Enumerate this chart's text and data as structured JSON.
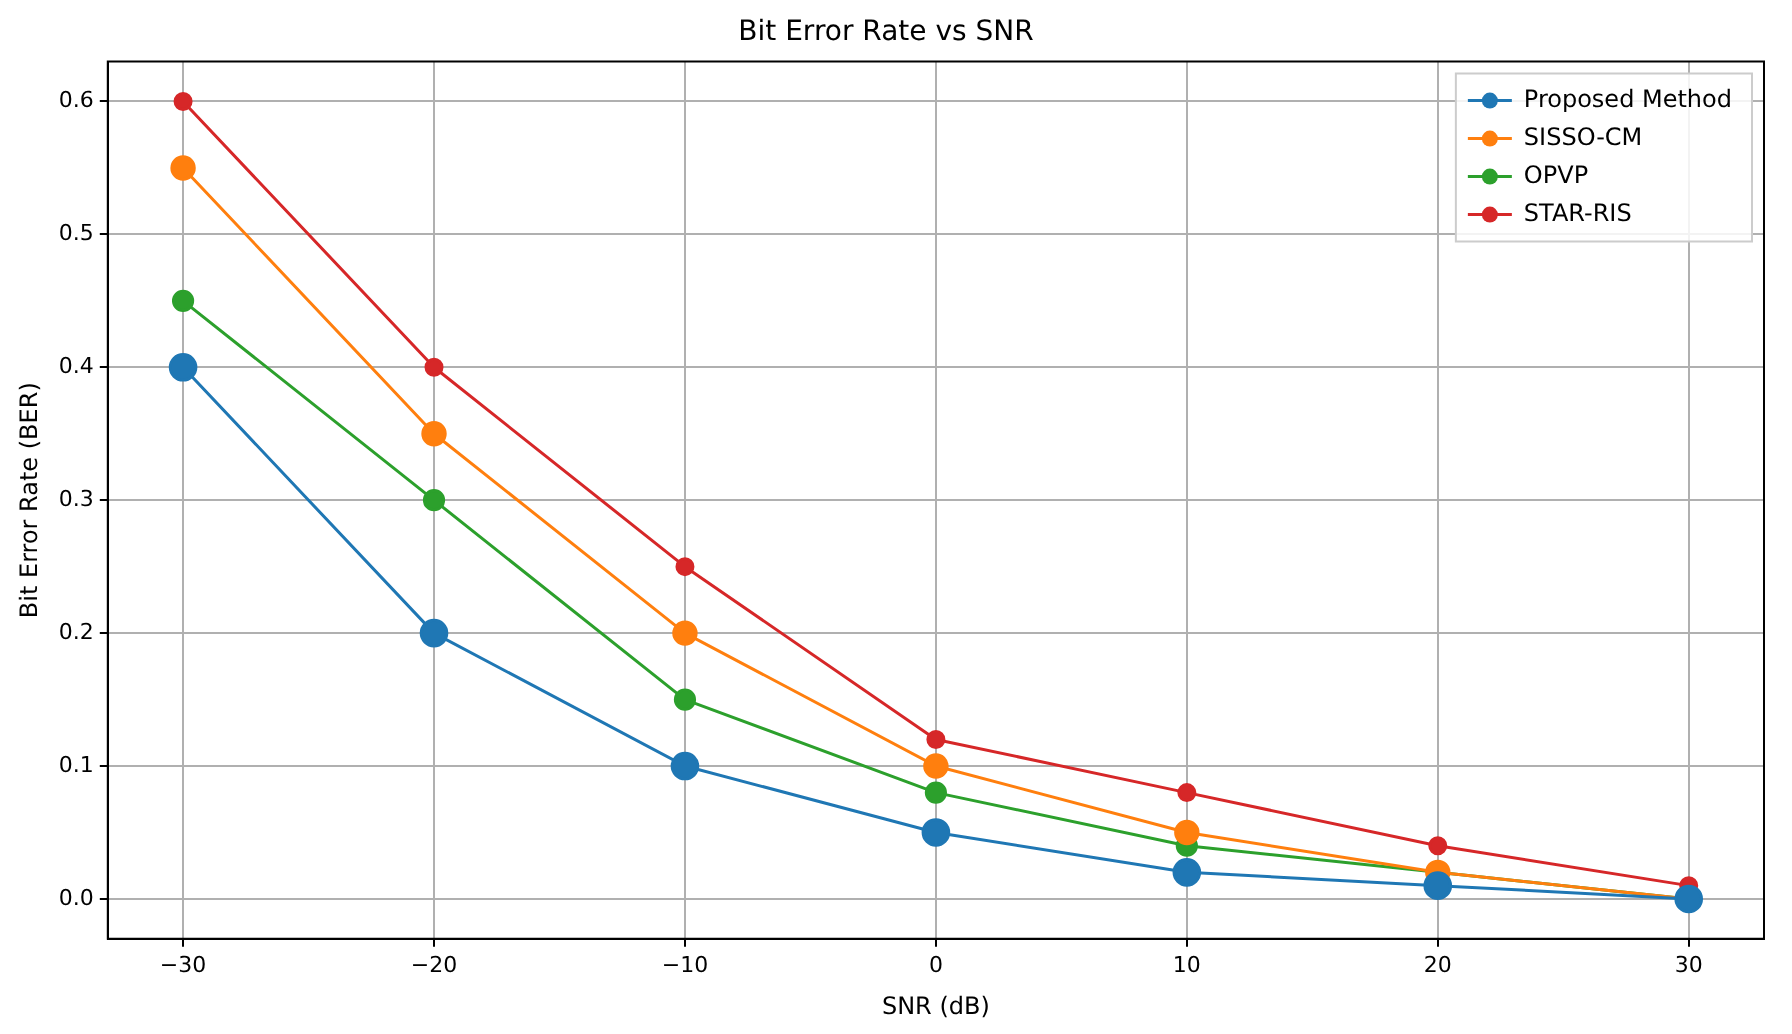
{
  "chart_data": {
    "type": "line",
    "title": "Bit Error Rate vs SNR",
    "xlabel": "SNR (dB)",
    "ylabel": "Bit Error Rate (BER)",
    "x": [
      -30,
      -20,
      -10,
      0,
      10,
      20,
      30
    ],
    "series": [
      {
        "name": "Proposed Method",
        "color": "#1f77b4",
        "values": [
          0.4,
          0.2,
          0.1,
          0.05,
          0.02,
          0.01,
          0.0
        ]
      },
      {
        "name": "SISSO-CM",
        "color": "#ff7f0e",
        "values": [
          0.55,
          0.35,
          0.2,
          0.1,
          0.05,
          0.02,
          0.0
        ]
      },
      {
        "name": "OPVP",
        "color": "#2ca02c",
        "values": [
          0.45,
          0.3,
          0.15,
          0.08,
          0.04,
          0.02,
          0.0
        ]
      },
      {
        "name": "STAR-RIS",
        "color": "#d62728",
        "values": [
          0.6,
          0.4,
          0.25,
          0.12,
          0.08,
          0.04,
          0.01
        ]
      }
    ],
    "xlim": [
      -33,
      33
    ],
    "xticks": [
      {
        "value": -30,
        "label": "−30"
      },
      {
        "value": -20,
        "label": "−20"
      },
      {
        "value": -10,
        "label": "−10"
      },
      {
        "value": 0,
        "label": "0"
      },
      {
        "value": 10,
        "label": "10"
      },
      {
        "value": 20,
        "label": "20"
      },
      {
        "value": 30,
        "label": "30"
      }
    ],
    "ylim": [
      -0.03,
      0.63
    ],
    "yticks": [
      {
        "value": 0,
        "label": "0.0"
      },
      {
        "value": 0.1,
        "label": "0.1"
      },
      {
        "value": 0.2,
        "label": "0.2"
      },
      {
        "value": 0.3,
        "label": "0.3"
      },
      {
        "value": 0.4,
        "label": "0.4"
      },
      {
        "value": 0.5,
        "label": "0.5"
      },
      {
        "value": 0.6,
        "label": "0.6"
      }
    ],
    "grid": true,
    "legend": "top right",
    "marker": "circle",
    "line_style": "solid"
  }
}
